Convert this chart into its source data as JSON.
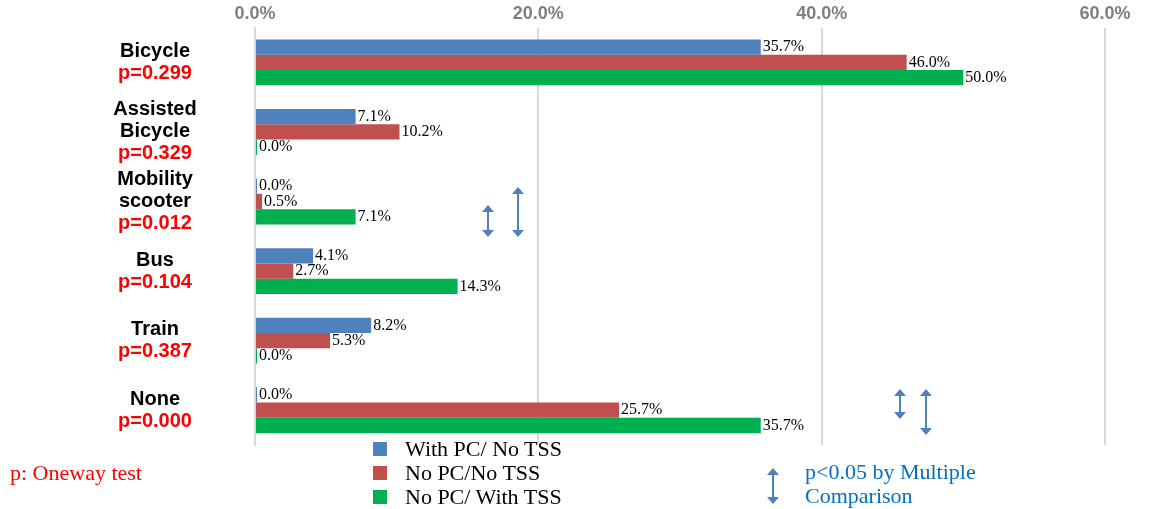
{
  "chart_data": {
    "type": "bar",
    "orientation": "horizontal",
    "categories": [
      "Bicycle\np=0.299",
      "Assisted Bicycle\np=0.329",
      "Mobility scooter\np=0.012",
      "Bus\np=0.104",
      "Train\np=0.387",
      "None\np=0.000"
    ],
    "series": [
      {
        "name": "With PC/ No TSS",
        "color": "#4f81bd",
        "values": [
          35.7,
          7.1,
          0.0,
          4.1,
          8.2,
          0.0
        ],
        "value_labels": [
          "35.7%",
          "7.1%",
          "0.0%",
          "4.1%",
          "8.2%",
          "0.0%"
        ]
      },
      {
        "name": "No PC/No TSS",
        "color": "#c0504d",
        "values": [
          46.0,
          10.2,
          0.5,
          2.7,
          5.3,
          25.7
        ],
        "value_labels": [
          "46.0%",
          "10.2%",
          "0.5%",
          "2.7%",
          "5.3%",
          "25.7%"
        ]
      },
      {
        "name": "No PC/ With TSS",
        "color": "#00b050",
        "values": [
          50.0,
          0.0,
          7.1,
          14.3,
          0.0,
          35.7
        ],
        "value_labels": [
          "50.0%",
          "0.0%",
          "7.1%",
          "14.3%",
          "0.0%",
          "35.7%"
        ]
      }
    ],
    "xlim": [
      0,
      60
    ],
    "xticks": [
      {
        "value": 0,
        "label": "0.0%"
      },
      {
        "value": 20,
        "label": "20.0%"
      },
      {
        "value": 40,
        "label": "40.0%"
      },
      {
        "value": 60,
        "label": "60.0%"
      }
    ],
    "grid": "x",
    "legend": "bottom",
    "annotations": [
      "p: Oneway test",
      "p<0.05 by Multiple Comparison"
    ]
  }
}
